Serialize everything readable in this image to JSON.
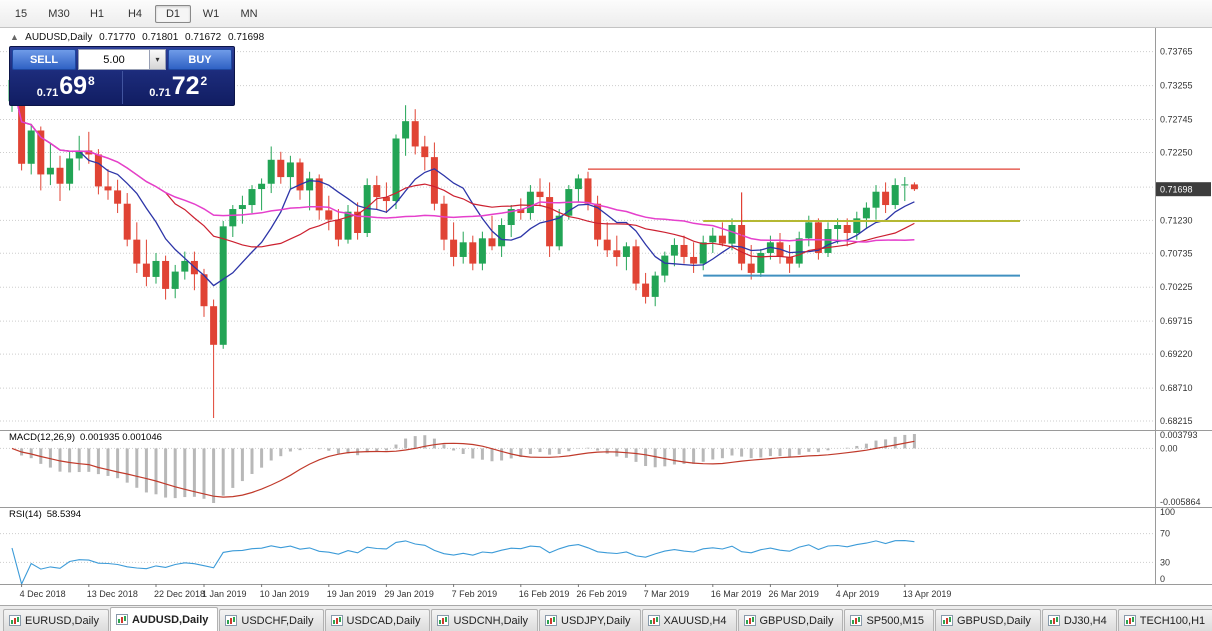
{
  "toolbar": {
    "periods": [
      {
        "label": "15",
        "active": false
      },
      {
        "label": "M30",
        "active": false
      },
      {
        "label": "H1",
        "active": false
      },
      {
        "label": "H4",
        "active": false
      },
      {
        "label": "D1",
        "active": true
      },
      {
        "label": "W1",
        "active": false
      },
      {
        "label": "MN",
        "active": false
      }
    ]
  },
  "header": {
    "symbol": "AUDUSD,Daily",
    "open": "0.71770",
    "high": "0.71801",
    "low": "0.71672",
    "close": "0.71698"
  },
  "trade_panel": {
    "sell_label": "SELL",
    "buy_label": "BUY",
    "lot_value": "5.00",
    "sell_price": {
      "base": "0.71",
      "pips": "69",
      "point": "8"
    },
    "buy_price": {
      "base": "0.71",
      "pips": "72",
      "point": "2"
    }
  },
  "indicators": {
    "macd": {
      "label": "MACD(12,26,9)",
      "values": "0.001935 0.001046"
    },
    "rsi": {
      "label": "RSI(14)",
      "value": "58.5394"
    }
  },
  "tabs": [
    {
      "label": "EURUSD,Daily",
      "active": false
    },
    {
      "label": "AUDUSD,Daily",
      "active": true
    },
    {
      "label": "USDCHF,Daily",
      "active": false
    },
    {
      "label": "USDCAD,Daily",
      "active": false
    },
    {
      "label": "USDCNH,Daily",
      "active": false
    },
    {
      "label": "USDJPY,Daily",
      "active": false
    },
    {
      "label": "XAUUSD,H4",
      "active": false
    },
    {
      "label": "GBPUSD,Daily",
      "active": false
    },
    {
      "label": "SP500,M15",
      "active": false
    },
    {
      "label": "GBPUSD,Daily",
      "active": false
    },
    {
      "label": "DJ30,H4",
      "active": false
    },
    {
      "label": "TECH100,H1",
      "active": false
    }
  ],
  "chart_data": [
    {
      "type": "candlestick",
      "symbol": "AUDUSD",
      "timeframe": "Daily",
      "ylim": [
        0.6808,
        0.7412
      ],
      "y_ticks": [
        "0.73765",
        "0.73255",
        "0.72745",
        "0.72250",
        "0.71730",
        "0.71230",
        "0.70735",
        "0.70225",
        "0.69715",
        "0.69220",
        "0.68710",
        "0.68215"
      ],
      "x_labels": [
        {
          "t": "4 Dec 2018",
          "i": 1
        },
        {
          "t": "13 Dec 2018",
          "i": 8
        },
        {
          "t": "22 Dec 2018",
          "i": 15
        },
        {
          "t": "1 Jan 2019",
          "i": 20
        },
        {
          "t": "10 Jan 2019",
          "i": 26
        },
        {
          "t": "19 Jan 2019",
          "i": 33
        },
        {
          "t": "29 Jan 2019",
          "i": 39
        },
        {
          "t": "7 Feb 2019",
          "i": 46
        },
        {
          "t": "16 Feb 2019",
          "i": 53
        },
        {
          "t": "26 Feb 2019",
          "i": 59
        },
        {
          "t": "7 Mar 2019",
          "i": 66
        },
        {
          "t": "16 Mar 2019",
          "i": 73
        },
        {
          "t": "26 Mar 2019",
          "i": 79
        },
        {
          "t": "4 Apr 2019",
          "i": 86
        },
        {
          "t": "13 Apr 2019",
          "i": 93
        }
      ],
      "last_price": 0.71698,
      "last_price_label": "0.71698",
      "colors": {
        "up": "#22a455",
        "down": "#e04334",
        "ma_fast": "#2d35a8",
        "ma_mid": "#cc2030",
        "ma_slow": "#e540cc"
      },
      "ma": {
        "fast": 8,
        "mid": 17,
        "slow": 34
      },
      "hlines": [
        {
          "price": 0.72,
          "from": 60,
          "to": 105,
          "color": "#e14034",
          "w": 1.2
        },
        {
          "price": 0.7122,
          "from": 72,
          "to": 105,
          "color": "#b5b832",
          "w": 2
        },
        {
          "price": 0.704,
          "from": 72,
          "to": 105,
          "color": "#4090c0",
          "w": 2
        }
      ],
      "vlines": [
        {
          "i": 76,
          "from": 0.7165,
          "to": 0.71,
          "color": "#e14034",
          "w": 1.2
        }
      ],
      "ohlc": [
        [
          0.7302,
          0.734,
          0.7286,
          0.7334
        ],
        [
          0.7334,
          0.7345,
          0.7198,
          0.7208
        ],
        [
          0.7208,
          0.7268,
          0.7192,
          0.7258
        ],
        [
          0.7258,
          0.7264,
          0.7168,
          0.7192
        ],
        [
          0.7192,
          0.7238,
          0.7176,
          0.7202
        ],
        [
          0.7202,
          0.722,
          0.7152,
          0.7178
        ],
        [
          0.7178,
          0.7226,
          0.7168,
          0.7216
        ],
        [
          0.7216,
          0.725,
          0.7198,
          0.7228
        ],
        [
          0.7228,
          0.7256,
          0.7208,
          0.7222
        ],
        [
          0.7222,
          0.723,
          0.7162,
          0.7174
        ],
        [
          0.7174,
          0.72,
          0.7154,
          0.7168
        ],
        [
          0.7168,
          0.7184,
          0.7134,
          0.7148
        ],
        [
          0.7148,
          0.7164,
          0.7084,
          0.7094
        ],
        [
          0.7094,
          0.712,
          0.7044,
          0.7058
        ],
        [
          0.7058,
          0.7094,
          0.7024,
          0.7038
        ],
        [
          0.7038,
          0.7074,
          0.7028,
          0.7062
        ],
        [
          0.7062,
          0.707,
          0.7004,
          0.702
        ],
        [
          0.702,
          0.7056,
          0.7006,
          0.7046
        ],
        [
          0.7046,
          0.7076,
          0.7034,
          0.7062
        ],
        [
          0.7062,
          0.7076,
          0.7018,
          0.7042
        ],
        [
          0.7042,
          0.705,
          0.6978,
          0.6994
        ],
        [
          0.6994,
          0.7004,
          0.6826,
          0.6936
        ],
        [
          0.6936,
          0.7122,
          0.693,
          0.7114
        ],
        [
          0.7114,
          0.7146,
          0.7098,
          0.714
        ],
        [
          0.714,
          0.716,
          0.7118,
          0.7146
        ],
        [
          0.7146,
          0.7176,
          0.7134,
          0.717
        ],
        [
          0.717,
          0.7186,
          0.7138,
          0.7178
        ],
        [
          0.7178,
          0.7234,
          0.7164,
          0.7214
        ],
        [
          0.7214,
          0.7226,
          0.7178,
          0.7188
        ],
        [
          0.7188,
          0.722,
          0.717,
          0.721
        ],
        [
          0.721,
          0.7216,
          0.7154,
          0.7168
        ],
        [
          0.7168,
          0.7196,
          0.7138,
          0.7186
        ],
        [
          0.7186,
          0.7192,
          0.7124,
          0.7138
        ],
        [
          0.7138,
          0.716,
          0.7108,
          0.7124
        ],
        [
          0.7124,
          0.714,
          0.7084,
          0.7094
        ],
        [
          0.7094,
          0.7146,
          0.7088,
          0.7136
        ],
        [
          0.7136,
          0.715,
          0.7094,
          0.7104
        ],
        [
          0.7104,
          0.7186,
          0.7098,
          0.7176
        ],
        [
          0.7176,
          0.719,
          0.714,
          0.7158
        ],
        [
          0.7158,
          0.718,
          0.7134,
          0.7152
        ],
        [
          0.7152,
          0.7252,
          0.714,
          0.7246
        ],
        [
          0.7246,
          0.7296,
          0.722,
          0.7272
        ],
        [
          0.7272,
          0.729,
          0.7222,
          0.7234
        ],
        [
          0.7234,
          0.725,
          0.7198,
          0.7218
        ],
        [
          0.7218,
          0.724,
          0.7138,
          0.7148
        ],
        [
          0.7148,
          0.716,
          0.7078,
          0.7094
        ],
        [
          0.7094,
          0.712,
          0.7054,
          0.7068
        ],
        [
          0.7068,
          0.7106,
          0.7058,
          0.709
        ],
        [
          0.709,
          0.71,
          0.7048,
          0.7058
        ],
        [
          0.7058,
          0.7106,
          0.7048,
          0.7096
        ],
        [
          0.7096,
          0.713,
          0.7078,
          0.7084
        ],
        [
          0.7084,
          0.7126,
          0.7068,
          0.7116
        ],
        [
          0.7116,
          0.7146,
          0.7098,
          0.714
        ],
        [
          0.714,
          0.7156,
          0.7124,
          0.7134
        ],
        [
          0.7134,
          0.7176,
          0.7124,
          0.7166
        ],
        [
          0.7166,
          0.7186,
          0.7144,
          0.7158
        ],
        [
          0.7158,
          0.718,
          0.7068,
          0.7084
        ],
        [
          0.7084,
          0.714,
          0.7078,
          0.713
        ],
        [
          0.713,
          0.7176,
          0.7124,
          0.717
        ],
        [
          0.717,
          0.7192,
          0.715,
          0.7186
        ],
        [
          0.7186,
          0.7196,
          0.7138,
          0.7148
        ],
        [
          0.7148,
          0.716,
          0.7084,
          0.7094
        ],
        [
          0.7094,
          0.712,
          0.7068,
          0.7078
        ],
        [
          0.7078,
          0.71,
          0.7054,
          0.7068
        ],
        [
          0.7068,
          0.709,
          0.7048,
          0.7084
        ],
        [
          0.7084,
          0.7094,
          0.7018,
          0.7028
        ],
        [
          0.7028,
          0.7044,
          0.6998,
          0.7008
        ],
        [
          0.7008,
          0.7046,
          0.6994,
          0.704
        ],
        [
          0.704,
          0.7076,
          0.703,
          0.707
        ],
        [
          0.707,
          0.7096,
          0.7054,
          0.7086
        ],
        [
          0.7086,
          0.71,
          0.7058,
          0.7068
        ],
        [
          0.7068,
          0.709,
          0.7044,
          0.7058
        ],
        [
          0.7058,
          0.71,
          0.7048,
          0.709
        ],
        [
          0.709,
          0.7112,
          0.7074,
          0.71
        ],
        [
          0.71,
          0.712,
          0.7084,
          0.7088
        ],
        [
          0.7088,
          0.7126,
          0.7078,
          0.7116
        ],
        [
          0.7116,
          0.7132,
          0.7048,
          0.7058
        ],
        [
          0.7058,
          0.7086,
          0.7034,
          0.7044
        ],
        [
          0.7044,
          0.708,
          0.7038,
          0.7074
        ],
        [
          0.7074,
          0.71,
          0.7064,
          0.709
        ],
        [
          0.709,
          0.7104,
          0.7058,
          0.7068
        ],
        [
          0.7068,
          0.7086,
          0.7044,
          0.7058
        ],
        [
          0.7058,
          0.7106,
          0.7052,
          0.7096
        ],
        [
          0.7096,
          0.713,
          0.7084,
          0.712
        ],
        [
          0.712,
          0.7126,
          0.7064,
          0.7074
        ],
        [
          0.7074,
          0.712,
          0.7068,
          0.711
        ],
        [
          0.711,
          0.7126,
          0.7088,
          0.7116
        ],
        [
          0.7116,
          0.7126,
          0.7084,
          0.7104
        ],
        [
          0.7104,
          0.7136,
          0.7094,
          0.7126
        ],
        [
          0.7126,
          0.715,
          0.711,
          0.7142
        ],
        [
          0.7142,
          0.7176,
          0.7124,
          0.7166
        ],
        [
          0.7166,
          0.718,
          0.7134,
          0.7146
        ],
        [
          0.7146,
          0.7186,
          0.714,
          0.7176
        ],
        [
          0.7176,
          0.7188,
          0.7152,
          0.7177
        ],
        [
          0.7177,
          0.71801,
          0.71672,
          0.71698
        ]
      ]
    },
    {
      "type": "macd",
      "label": "MACD(12,26,9)",
      "current_values": [
        0.001935,
        0.001046
      ],
      "scale_labels": [
        "0.003793",
        "0.00",
        "-0.005864"
      ],
      "signal_color": "#c03a2b",
      "histogram_color": "#b8b8b8"
    },
    {
      "type": "rsi",
      "label": "RSI(14)",
      "current_value": 58.5394,
      "scale_labels": [
        "100",
        "70",
        "30",
        "0"
      ],
      "levels": [
        70,
        30
      ],
      "color": "#3c9bd8"
    }
  ]
}
